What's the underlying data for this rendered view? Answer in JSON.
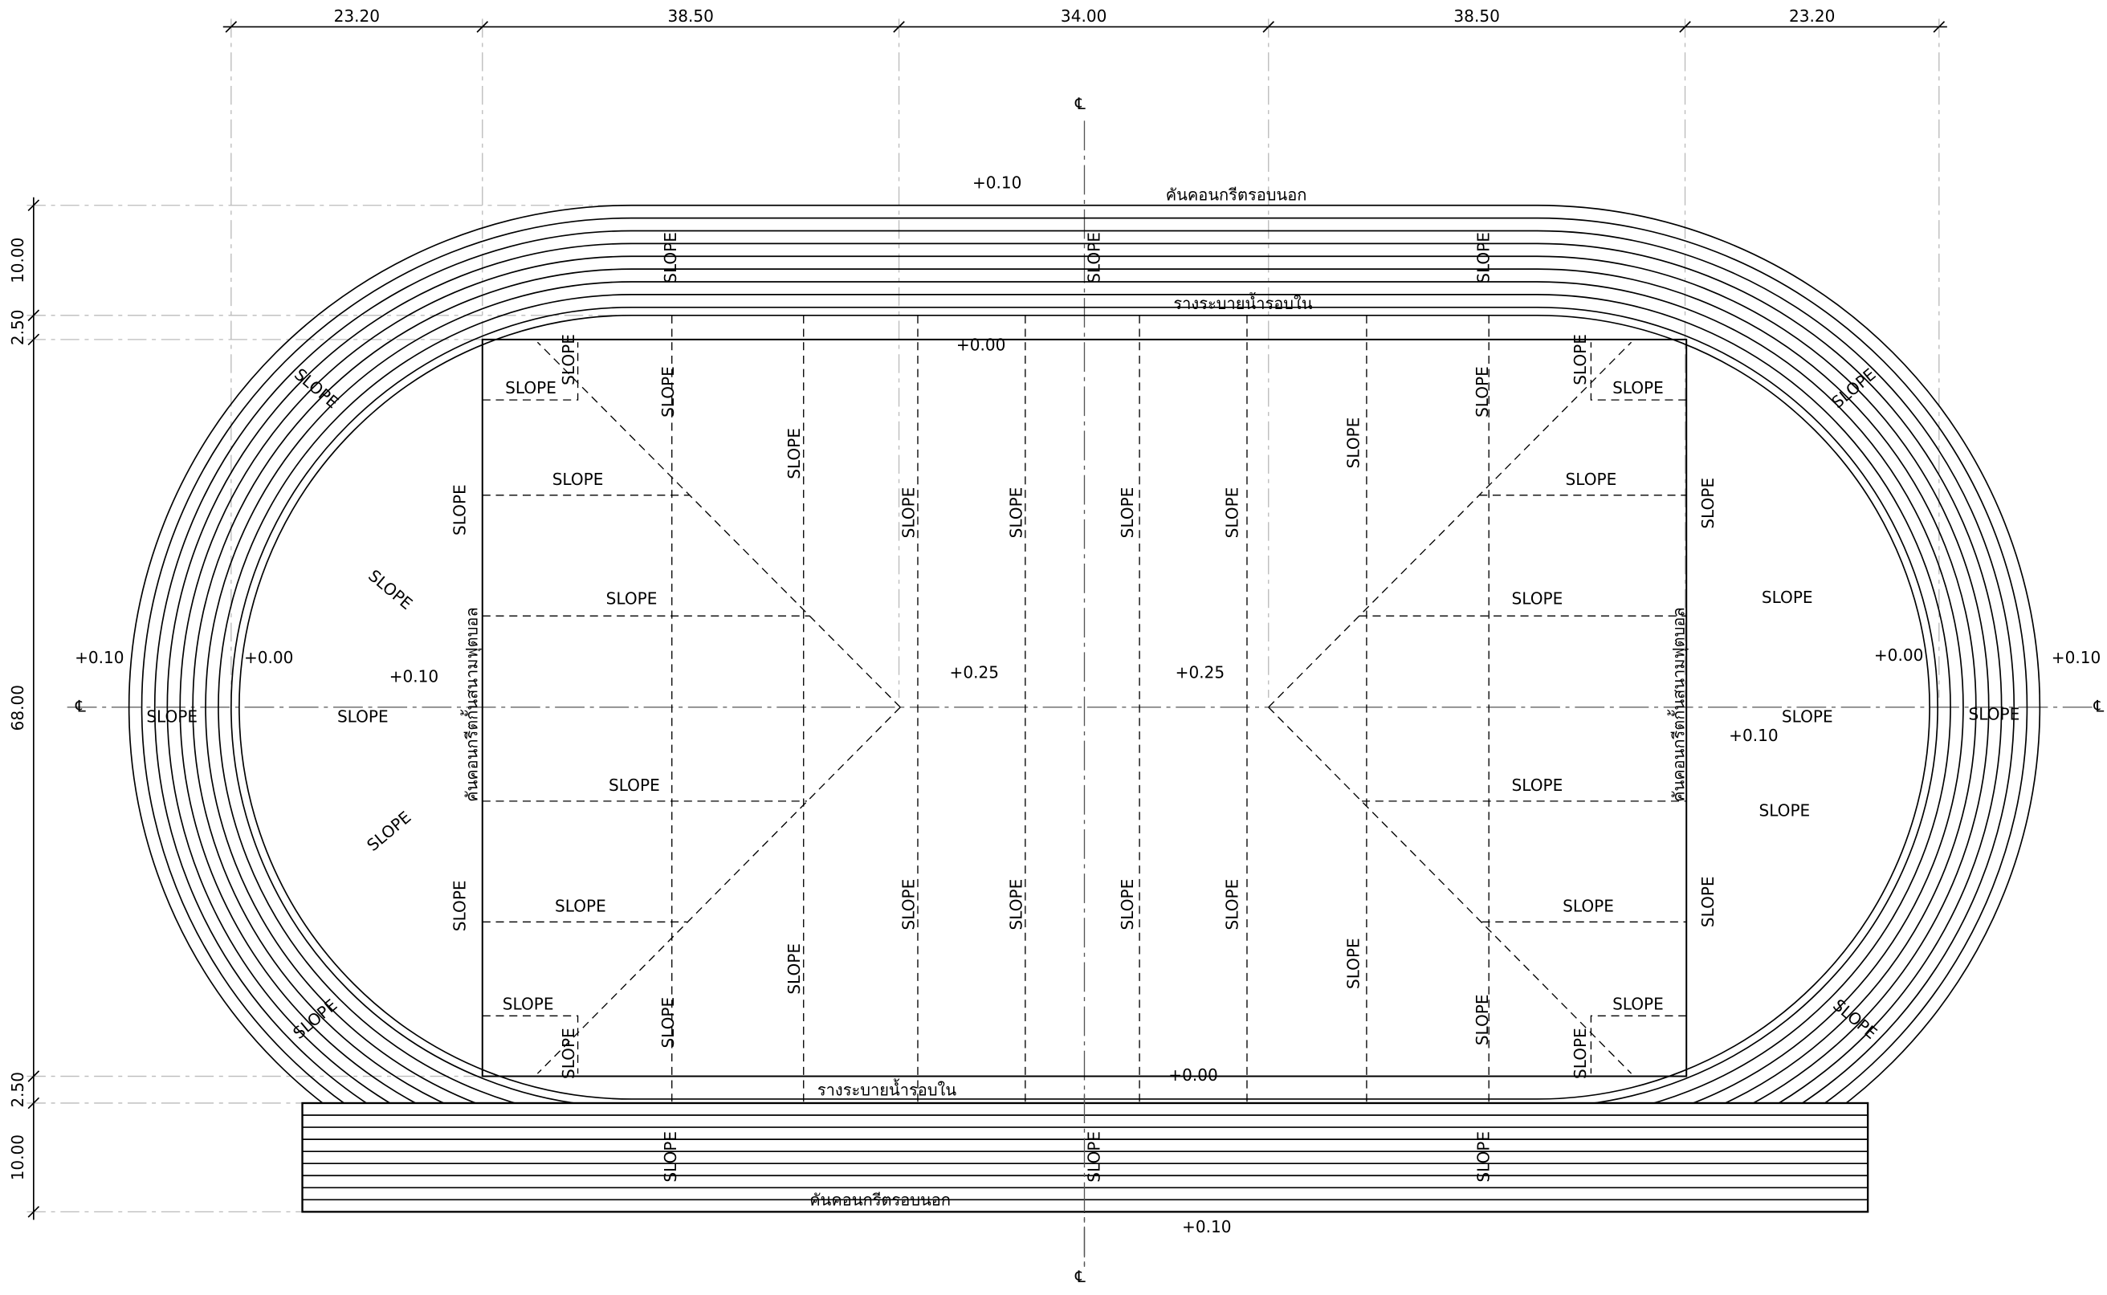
{
  "dimensions": {
    "top": [
      "23.20",
      "38.50",
      "34.00",
      "38.50",
      "23.20"
    ],
    "left": [
      "10.00",
      "2.50",
      "68.00",
      "2.50",
      "10.00"
    ]
  },
  "centerline_mark": "℄",
  "slope_label": "SLOPE",
  "levels": {
    "top_outer": "+0.10",
    "top_inner": "+0.00",
    "bottom_inner": "+0.00",
    "bottom_outer": "+0.10",
    "left_outer": "+0.10",
    "left_inner": "+0.00",
    "left_field": "+0.10",
    "center_left": "+0.25",
    "center_right": "+0.25",
    "right_field": "+0.10",
    "right_inner": "+0.00",
    "right_outer": "+0.10"
  },
  "notes": {
    "outer_curb_top": "คันคอนกรีตรอบนอก",
    "inner_drain_top": "รางระบายน้ำรอบใน",
    "inner_drain_bottom": "รางระบายน้ำรอบใน",
    "outer_curb_bottom": "คันคอนกรีตรอบนอก",
    "field_curb_left": "คันคอนกรีตกั้นสนามฟุตบอล",
    "field_curb_right": "คันคอนกรีตกั้นสนามฟุตบอล"
  }
}
